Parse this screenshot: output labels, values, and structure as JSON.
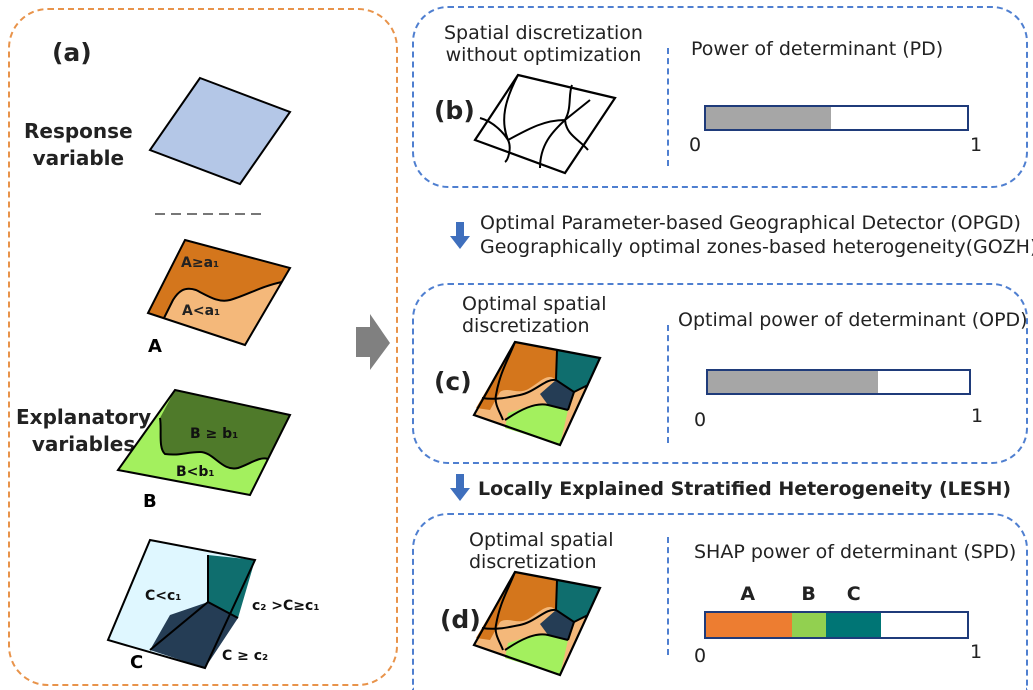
{
  "panel_a": {
    "label": "(a)",
    "response_label": "Response\nvariable",
    "explanatory_label": "Explanatory\nvariables",
    "map_a": {
      "letter": "A",
      "upper": "A≥a₁",
      "lower": "A<a₁"
    },
    "map_b": {
      "letter": "B",
      "upper": "B ≥ b₁",
      "lower": "B<b₁"
    },
    "map_c": {
      "letter": "C",
      "left": "C<c₁",
      "right": "c₂ >C≥c₁",
      "bottom": "C ≥ c₂"
    }
  },
  "panel_b": {
    "label": "(b)",
    "title": "Spatial discretization\nwithout optimization",
    "pd_title": "Power of determinant (PD)",
    "axis_min": "0",
    "axis_max": "1",
    "fill": 0.48
  },
  "step1": {
    "line1": "Optimal Parameter-based Geographical Detector (OPGD)",
    "line2": "Geographically optimal zones-based heterogeneity(GOZH)"
  },
  "panel_c": {
    "label": "(c)",
    "title": "Optimal spatial\ndiscretization",
    "pd_title": "Optimal power of determinant (OPD)",
    "axis_min": "0",
    "axis_max": "1",
    "fill": 0.65
  },
  "step2": {
    "line1": "Locally Explained Stratified Heterogeneity (LESH)"
  },
  "panel_d": {
    "label": "(d)",
    "title": "Optimal spatial\ndiscretization",
    "pd_title": "SHAP power of determinant (SPD)",
    "axis_min": "0",
    "axis_max": "1",
    "segments": [
      {
        "name": "A",
        "fraction": 0.33,
        "color": "#ed7d31"
      },
      {
        "name": "B",
        "fraction": 0.13,
        "color": "#92d050"
      },
      {
        "name": "C",
        "fraction": 0.21,
        "color": "#007575"
      }
    ]
  },
  "colors": {
    "response": "#b4c7e7",
    "a_dark": "#d4761c",
    "a_light": "#f4b87a",
    "b_dark": "#4f7a2a",
    "b_light": "#a3f05e",
    "c_light": "#dff7ff",
    "c_teal": "#0f6e6e",
    "c_dark": "#253d55",
    "bar_gray": "#a6a6a6",
    "arrow_blue": "#3f6fbd",
    "big_arrow": "#808080"
  }
}
